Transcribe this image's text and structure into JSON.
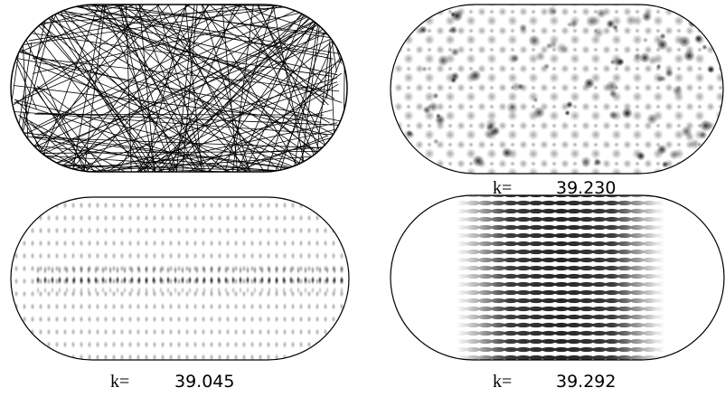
{
  "panels": [
    {
      "k_label": "k=",
      "k_value": "39.230"
    },
    {
      "k_label": "k=",
      "k_value": "39.045"
    },
    {
      "k_label": "k=",
      "k_value": "39.292"
    }
  ]
}
